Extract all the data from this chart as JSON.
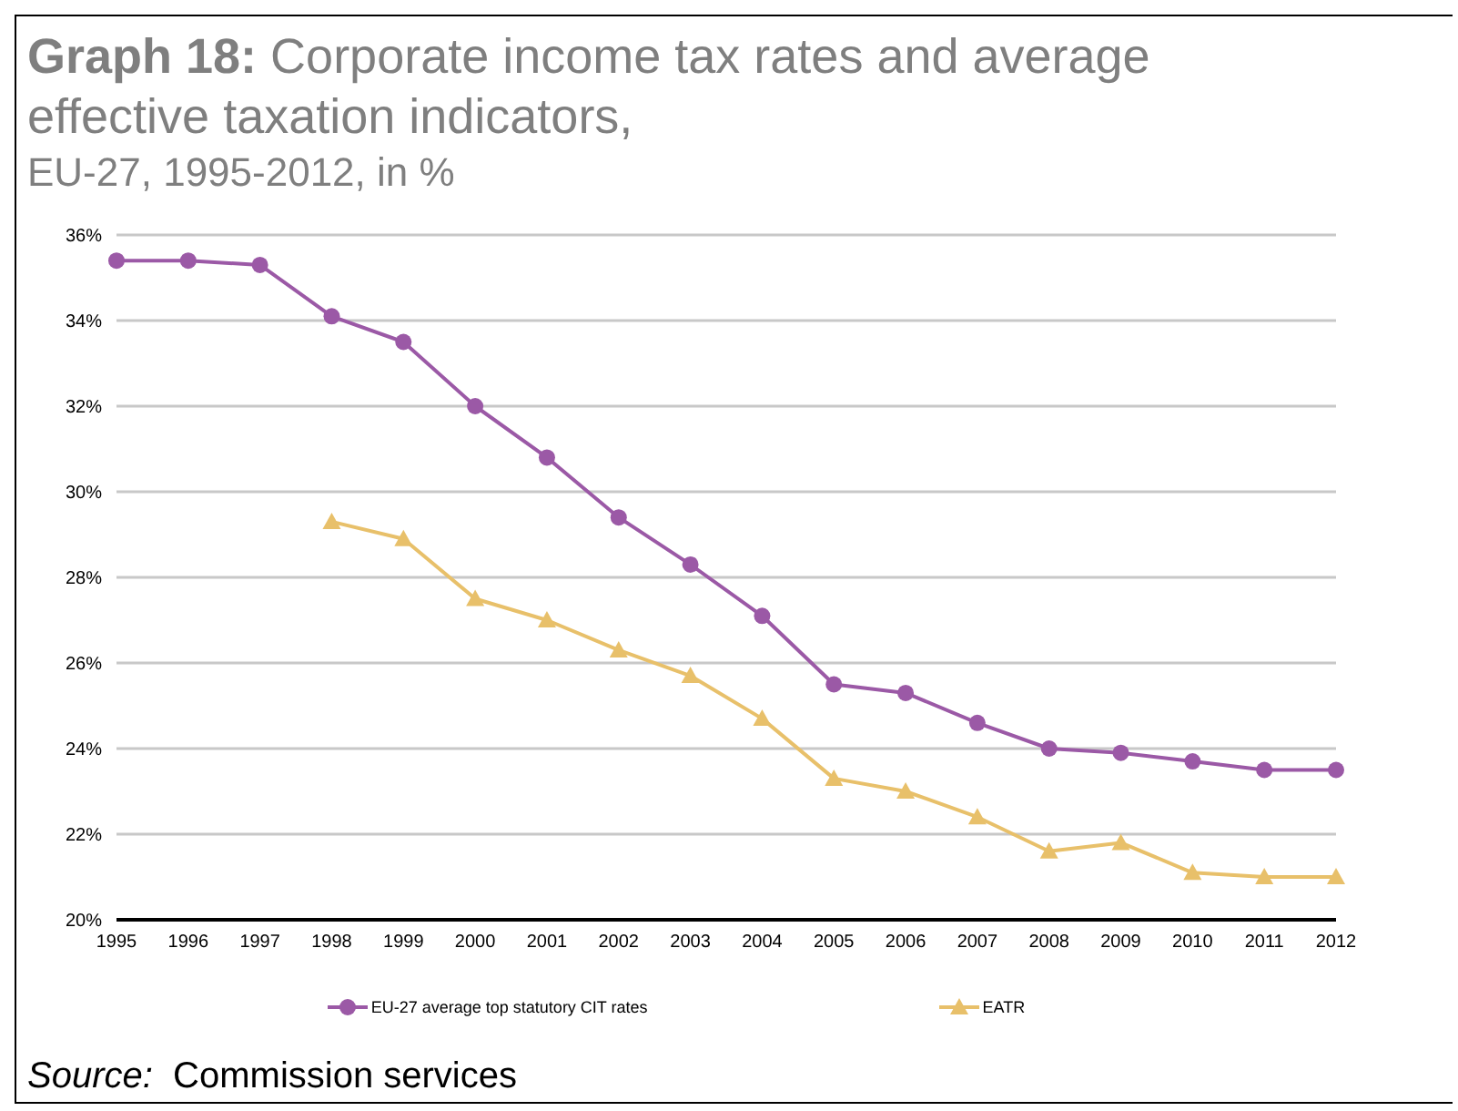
{
  "chart_data": {
    "type": "line",
    "title": "Graph 18: Corporate income tax rates and average effective taxation indicators,",
    "subtitle": "EU-27, 1995-2012, in %",
    "categories": [
      "1995",
      "1996",
      "1997",
      "1998",
      "1999",
      "2000",
      "2001",
      "2002",
      "2003",
      "2004",
      "2005",
      "2006",
      "2007",
      "2008",
      "2009",
      "2010",
      "2011",
      "2012"
    ],
    "series": [
      {
        "name": "EU-27 average top statutory CIT rates",
        "color": "#9b59a6",
        "marker": "circle",
        "values": [
          35.4,
          35.4,
          35.3,
          34.1,
          33.5,
          32.0,
          30.8,
          29.4,
          28.3,
          27.1,
          25.5,
          25.3,
          24.6,
          24.0,
          23.9,
          23.7,
          23.5,
          23.5
        ]
      },
      {
        "name": "EATR",
        "color": "#e8c06a",
        "marker": "triangle",
        "values": [
          null,
          null,
          null,
          29.3,
          28.9,
          27.5,
          27.0,
          26.3,
          25.7,
          24.7,
          23.3,
          23.0,
          22.4,
          21.6,
          21.8,
          21.1,
          21.0,
          21.0
        ]
      }
    ],
    "ylim": [
      20,
      36
    ],
    "yticks": [
      {
        "value": 20,
        "label": "20%"
      },
      {
        "value": 22,
        "label": "22%"
      },
      {
        "value": 24,
        "label": "24%"
      },
      {
        "value": 26,
        "label": "26%"
      },
      {
        "value": 28,
        "label": "28%"
      },
      {
        "value": 30,
        "label": "30%"
      },
      {
        "value": 32,
        "label": "32%"
      },
      {
        "value": 34,
        "label": "34%"
      },
      {
        "value": 36,
        "label": "36%"
      }
    ],
    "grid": "y",
    "legend": "bottom",
    "annotations": [
      "Source: Commission services"
    ]
  }
}
